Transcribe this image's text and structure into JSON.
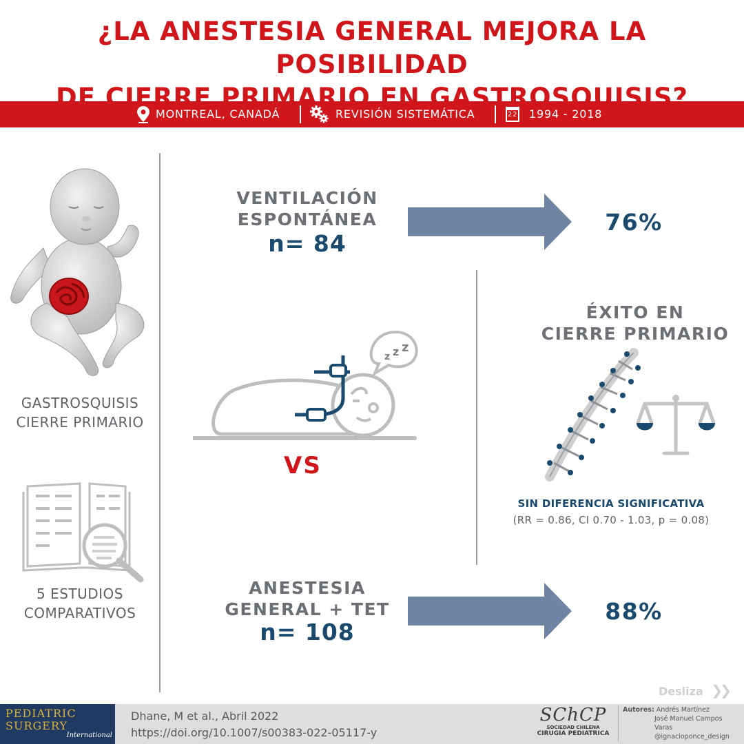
{
  "title": {
    "line1": "¿LA ANESTESIA GENERAL MEJORA LA POSIBILIDAD",
    "line2": "DE CIERRE PRIMARIO EN GASTROSQUISIS?"
  },
  "info_bar": {
    "location": "MONTREAL, CANADÁ",
    "study_type": "REVISIÓN SISTEMÁTICA",
    "calendar_day": "22",
    "years": "1994 - 2018",
    "icons": [
      "location-pin-icon",
      "gears-icon",
      "calendar-icon"
    ]
  },
  "left": {
    "condition_line1": "GASTROSQUISIS",
    "condition_line2": "CIERRE PRIMARIO",
    "studies_line1": "5 ESTUDIOS",
    "studies_line2": "COMPARATIVOS"
  },
  "groups": {
    "spontaneous": {
      "label_line1": "VENTILACIÓN",
      "label_line2": "ESPONTÁNEA",
      "n": "n= 84",
      "result": "76%"
    },
    "general": {
      "label_line1": "ANESTESIA",
      "label_line2": "GENERAL + TET",
      "n": "n= 108",
      "result": "88%"
    },
    "vs": "VS",
    "sleep_text": "z",
    "sleep_text_small": "z",
    "sleep_text_smaller": "z"
  },
  "outcome": {
    "heading_line1": "ÉXITO EN",
    "heading_line2": "CIERRE PRIMARIO",
    "significance": "SIN DIFERENCIA SIGNIFICATIVA",
    "stats": "(RR = 0.86, CI 0.70 - 1.03, p = 0.08)"
  },
  "footer": {
    "journal_line1": "PEDIATRIC",
    "journal_line2": "SURGERY",
    "journal_line3": "International",
    "citation": "Dhane, M et al., Abril 2022",
    "doi": "https://doi.org/10.1007/s00383-022-05117-y",
    "society_logo": "SChCP",
    "society_line1": "SOCIEDAD CHILENA",
    "society_line2": "CIRUGIA PEDIATRICA",
    "authors_label": "Autores:",
    "author1": "Andrés Martínez",
    "author2": "José Manuel Campos Varas",
    "author3": "@ignacioponce_design",
    "swipe": "Desliza"
  },
  "colors": {
    "red": "#d0161b",
    "navy": "#1a4a6e",
    "arrow": "#6f84a2",
    "grey_text": "#5f6266"
  }
}
